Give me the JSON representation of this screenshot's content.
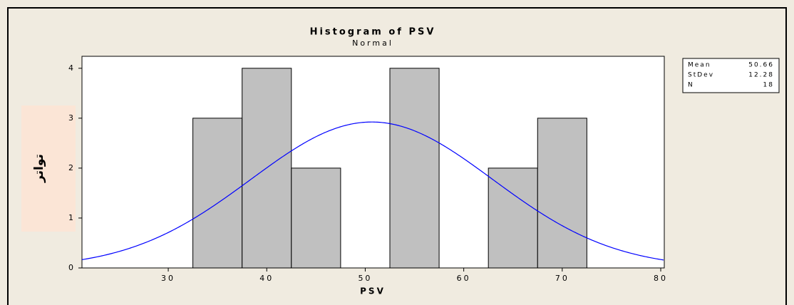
{
  "chart_data": {
    "type": "histogram",
    "title": "Histogram of PSV",
    "subtitle": "Normal",
    "x_label": "PSV",
    "y_label": "تواتر",
    "bins": [
      32.5,
      37.5,
      42.5,
      47.5,
      52.5,
      57.5,
      62.5,
      67.5,
      72.5
    ],
    "values": [
      3,
      4,
      2,
      0,
      4,
      0,
      2,
      3
    ],
    "color": "#c0c0c0",
    "curve_color": "#0000ff",
    "xlim": [
      21.24,
      80.36
    ],
    "ylim": [
      0,
      4.24
    ],
    "xticks": [
      30,
      40,
      50,
      60,
      70,
      80
    ],
    "yticks": [
      0,
      1,
      2,
      3,
      4
    ],
    "stats": [
      {
        "label": "Mean",
        "value": 50.66
      },
      {
        "label": "StDev",
        "value": 12.28
      },
      {
        "label": "N",
        "value": 18
      }
    ]
  }
}
